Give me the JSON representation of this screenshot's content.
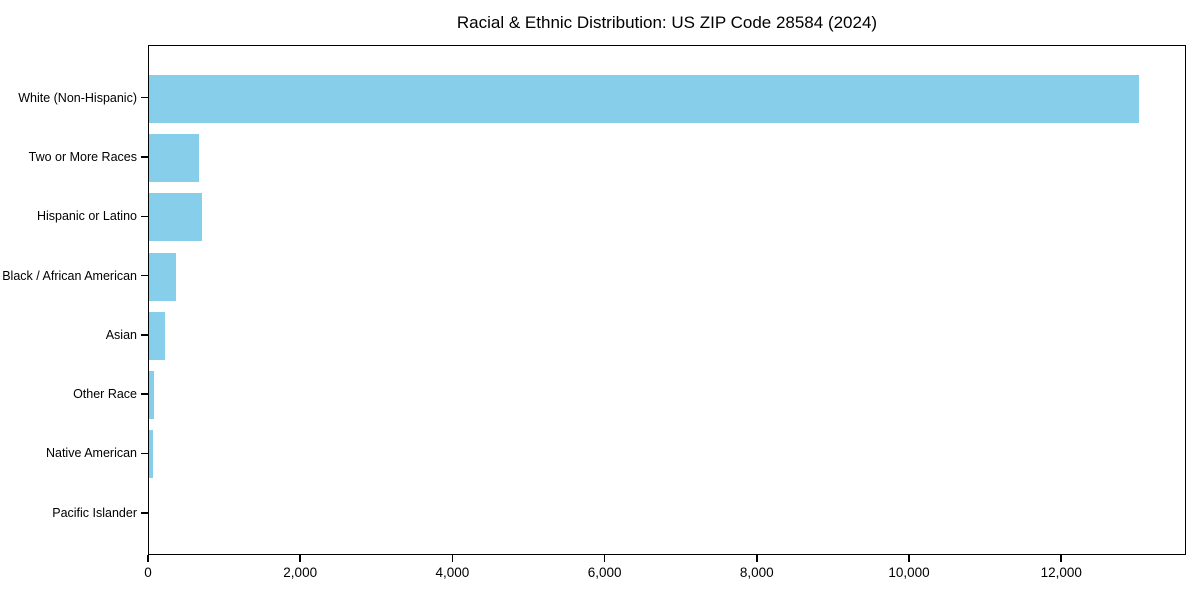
{
  "title": "Racial & Ethnic Distribution: US ZIP Code 28584 (2024)",
  "colors": {
    "bar": "#87CEEB",
    "axis": "#000000",
    "background": "#FFFFFF",
    "text": "#000000"
  },
  "chart_data": {
    "type": "bar",
    "orientation": "horizontal",
    "title": "Racial & Ethnic Distribution: US ZIP Code 28584 (2024)",
    "categories": [
      "White (Non-Hispanic)",
      "Two or More Races",
      "Hispanic or Latino",
      "Black / African American",
      "Asian",
      "Other Race",
      "Native American",
      "Pacific Islander"
    ],
    "values": [
      13000,
      650,
      690,
      355,
      205,
      60,
      55,
      0
    ],
    "xlabel": "",
    "ylabel": "",
    "xlim": [
      0,
      13600
    ],
    "x_ticks": [
      0,
      2000,
      4000,
      6000,
      8000,
      10000,
      12000
    ],
    "x_tick_labels": [
      "0",
      "2,000",
      "4,000",
      "6,000",
      "8,000",
      "10,000",
      "12,000"
    ],
    "grid": false,
    "legend": false,
    "bar_color": "#87CEEB"
  }
}
